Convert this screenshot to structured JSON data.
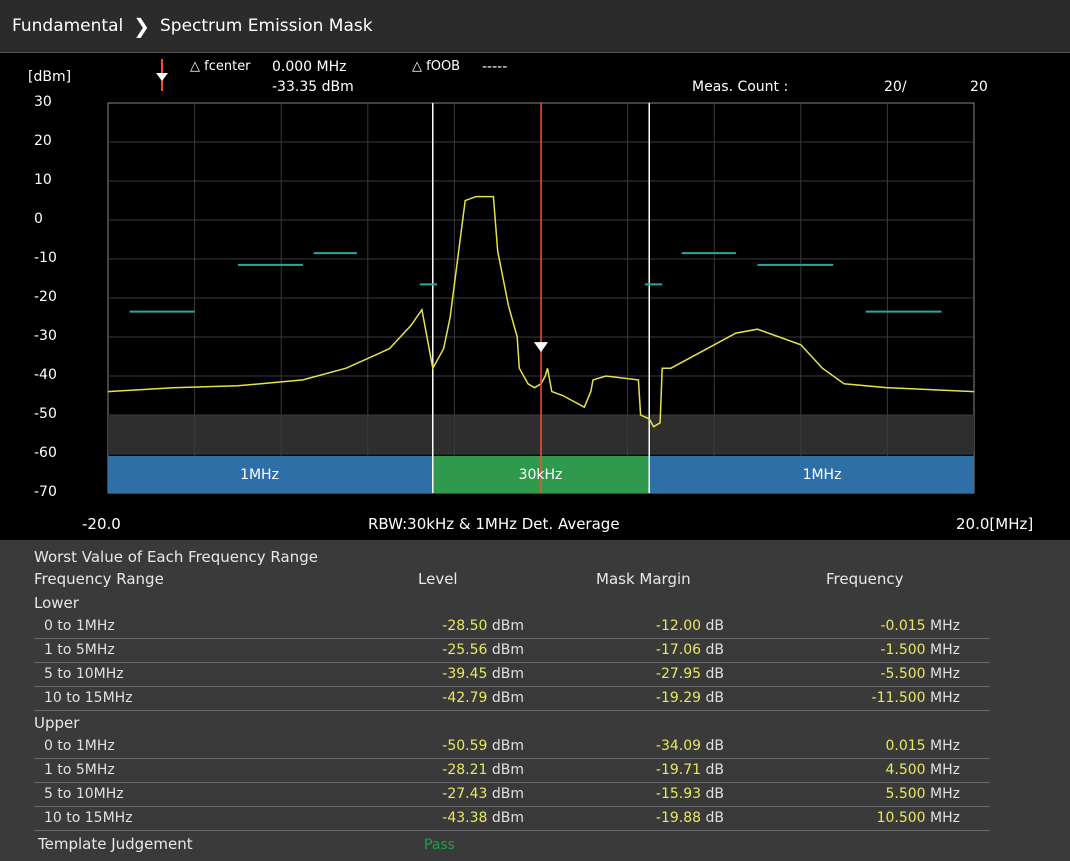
{
  "breadcrumb": {
    "root": "Fundamental",
    "current": "Spectrum Emission Mask"
  },
  "graph": {
    "unit_label": "[dBm]",
    "marker": {
      "fcenter_label": "△ fcenter",
      "fcenter_value": "0.000 MHz",
      "level_value": "-33.35 dBm",
      "foob_label": "△ fOOB",
      "foob_value": "-----"
    },
    "meas_count": {
      "label": "Meas. Count :",
      "current": "20/",
      "total": "20"
    },
    "x_start": "-20.0",
    "x_end": "20.0[MHz]",
    "center_caption": "RBW:30kHz & 1MHz Det. Average",
    "rbw_labels": [
      "1MHz",
      "30kHz",
      "1MHz"
    ]
  },
  "chart_data": {
    "type": "line",
    "ylabel": "[dBm]",
    "xlim": [
      -20,
      20
    ],
    "ylim": [
      -70,
      30
    ],
    "yticks": [
      "30",
      "20",
      "10",
      "0",
      "-10",
      "-20",
      "-30",
      "-40",
      "-50",
      "-60",
      "-70"
    ],
    "trace": {
      "x": [
        -20,
        -17,
        -14,
        -11,
        -9,
        -7,
        -6,
        -5.5,
        -5,
        -4.5,
        -4.2,
        -3.5,
        -3,
        -2.5,
        -2.2,
        -2,
        -1.5,
        -1.1,
        -1,
        -0.6,
        -0.3,
        0,
        0.2,
        0.3,
        0.5,
        1,
        2,
        2.3,
        2.4,
        3,
        4.5,
        4.6,
        5,
        5.2,
        5.5,
        5.6,
        6,
        9,
        10,
        12,
        13,
        14,
        16,
        20
      ],
      "y": [
        -44,
        -43,
        -42.5,
        -41,
        -38,
        -33,
        -27,
        -23,
        -38,
        -33,
        -25,
        5,
        6,
        6,
        6,
        -8,
        -22,
        -30,
        -38,
        -42,
        -43,
        -42,
        -40,
        -38,
        -44,
        -45,
        -48,
        -44,
        -41,
        -40,
        -41,
        -50,
        -51,
        -53,
        -52,
        -38,
        -38,
        -29,
        -28,
        -32,
        -38,
        -42,
        -43,
        -44
      ]
    },
    "mask_segments": [
      {
        "x": [
          -19,
          -16
        ],
        "y": -23.5
      },
      {
        "x": [
          -14,
          -11
        ],
        "y": -11.5
      },
      {
        "x": [
          -10.5,
          -8.5
        ],
        "y": -8.5
      },
      {
        "x": [
          -5.6,
          -4.8
        ],
        "y": -16.5
      },
      {
        "x": [
          4.8,
          5.6
        ],
        "y": -16.5
      },
      {
        "x": [
          6.5,
          9
        ],
        "y": -8.5
      },
      {
        "x": [
          10,
          13.5
        ],
        "y": -11.5
      },
      {
        "x": [
          15,
          18.5
        ],
        "y": -23.5
      }
    ],
    "segment_boundaries": [
      -5,
      5
    ],
    "marker_x": 0,
    "marker_y": -33.35
  },
  "table": {
    "title": "Worst Value of Each Frequency Range",
    "headers": {
      "range": "Frequency Range",
      "level": "Level",
      "margin": "Mask Margin",
      "freq": "Frequency"
    },
    "lower_label": "Lower",
    "upper_label": "Upper",
    "lower": [
      {
        "range": "0 to 1MHz",
        "level": "-28.50",
        "margin": "-12.00",
        "freq": "-0.015"
      },
      {
        "range": "1 to 5MHz",
        "level": "-25.56",
        "margin": "-17.06",
        "freq": "-1.500"
      },
      {
        "range": "5 to 10MHz",
        "level": "-39.45",
        "margin": "-27.95",
        "freq": "-5.500"
      },
      {
        "range": "10 to 15MHz",
        "level": "-42.79",
        "margin": "-19.29",
        "freq": "-11.500"
      }
    ],
    "upper": [
      {
        "range": "0 to 1MHz",
        "level": "-50.59",
        "margin": "-34.09",
        "freq": "0.015"
      },
      {
        "range": "1 to 5MHz",
        "level": "-28.21",
        "margin": "-19.71",
        "freq": "4.500"
      },
      {
        "range": "5 to 10MHz",
        "level": "-27.43",
        "margin": "-15.93",
        "freq": "5.500"
      },
      {
        "range": "10 to 15MHz",
        "level": "-43.38",
        "margin": "-19.88",
        "freq": "10.500"
      }
    ],
    "units": {
      "level": "dBm",
      "margin": "dB",
      "freq": "MHz"
    },
    "judgement_label": "Template Judgement",
    "judgement_value": "Pass"
  },
  "colors": {
    "trace": "#e6e24a",
    "mask": "#2aa7a0",
    "marker": "#ff4a2a",
    "rbw_side": "#2e6fa6",
    "rbw_center": "#2f9a4e"
  }
}
